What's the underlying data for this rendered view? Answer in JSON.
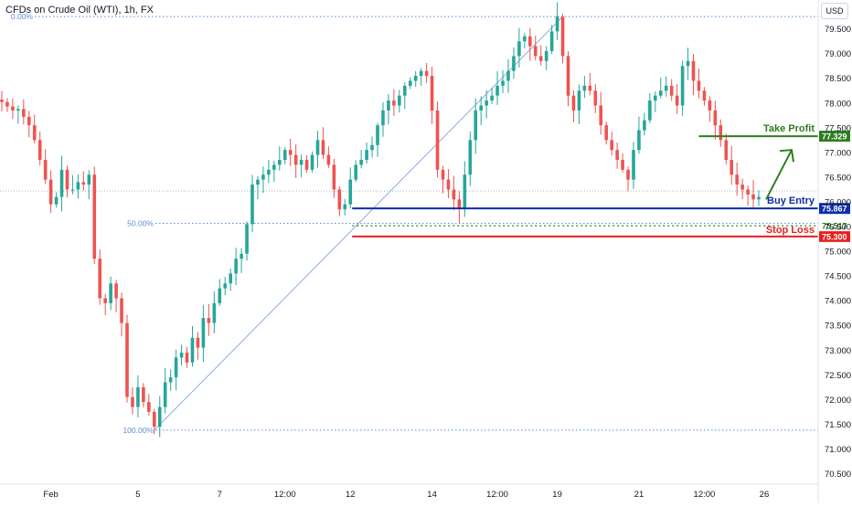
{
  "header": {
    "title": "CFDs on Crude Oil (WTI), 1h, FX",
    "currency_button": "USD"
  },
  "colors": {
    "up": "#26a69a",
    "down": "#ef5350",
    "entry": "#0d2fa8",
    "stop": "#e91e1e",
    "target": "#2e7d1f",
    "fib": "#5b8fd6"
  },
  "chart_data": {
    "type": "candlestick",
    "title": "CFDs on Crude Oil (WTI), 1h, FX",
    "ylim": [
      70.5,
      79.9
    ],
    "y_ticks": [
      "79.500",
      "79.000",
      "78.500",
      "78.000",
      "77.500",
      "77.000",
      "76.500",
      "76.000",
      "75.500",
      "75.000",
      "74.500",
      "74.000",
      "73.500",
      "73.000",
      "72.500",
      "72.000",
      "71.500",
      "71.000",
      "70.500"
    ],
    "x_ticks": [
      {
        "label": "Feb",
        "i": 9
      },
      {
        "label": "5",
        "i": 25
      },
      {
        "label": "7",
        "i": 40
      },
      {
        "label": "12:00",
        "i": 52
      },
      {
        "label": "12",
        "i": 64
      },
      {
        "label": "14",
        "i": 79
      },
      {
        "label": "12:00",
        "i": 91
      },
      {
        "label": "19",
        "i": 102
      },
      {
        "label": "21",
        "i": 117
      },
      {
        "label": "12:00",
        "i": 129
      },
      {
        "label": "26",
        "i": 140
      }
    ],
    "close": [
      78.02,
      77.93,
      77.85,
      77.88,
      77.72,
      77.55,
      77.25,
      76.85,
      76.45,
      75.95,
      76.1,
      76.65,
      76.25,
      76.25,
      76.4,
      76.35,
      76.55,
      74.85,
      74.05,
      73.95,
      74.35,
      74.05,
      73.55,
      72.05,
      71.85,
      72.25,
      71.95,
      71.75,
      71.45,
      71.85,
      72.35,
      72.45,
      72.85,
      72.95,
      72.75,
      73.25,
      73.05,
      73.65,
      73.55,
      73.95,
      74.25,
      74.35,
      74.55,
      74.85,
      74.95,
      75.55,
      76.35,
      76.45,
      76.55,
      76.65,
      76.75,
      76.85,
      77.05,
      76.95,
      76.75,
      76.85,
      76.65,
      76.95,
      77.25,
      76.95,
      76.75,
      76.25,
      75.85,
      75.95,
      76.45,
      76.75,
      76.85,
      77.05,
      77.15,
      77.55,
      77.85,
      78.05,
      77.95,
      78.15,
      78.35,
      78.45,
      78.55,
      78.65,
      78.55,
      77.85,
      76.65,
      76.45,
      76.25,
      76.05,
      75.85,
      76.55,
      77.25,
      77.85,
      77.95,
      78.05,
      78.15,
      78.35,
      78.45,
      78.65,
      78.95,
      79.25,
      79.35,
      79.15,
      78.95,
      78.85,
      79.05,
      79.45,
      79.75,
      78.95,
      78.15,
      77.85,
      78.25,
      78.35,
      78.25,
      77.95,
      77.55,
      77.25,
      77.05,
      76.85,
      76.65,
      76.45,
      77.05,
      77.45,
      77.65,
      78.05,
      78.15,
      78.25,
      78.35,
      78.15,
      77.95,
      78.75,
      78.85,
      78.45,
      78.25,
      78.05,
      77.85,
      77.55,
      77.25,
      76.85,
      76.55,
      76.35,
      76.25,
      76.15,
      76.05,
      76.1
    ],
    "annotations": {
      "fib_top": {
        "label": "0.00%",
        "value": 79.75
      },
      "fib_mid": {
        "label": "50.00%",
        "value": 75.565
      },
      "fib_bottom": {
        "label": "100.00%",
        "value": 71.38
      },
      "current_level": 76.22,
      "take_profit": {
        "label": "Take Profit",
        "value": 77.329,
        "tag": "77.329"
      },
      "buy_entry": {
        "label": "Buy Entry",
        "value": 75.867,
        "tag": "75.867"
      },
      "mid_level": {
        "value": 75.517,
        "tag": "75.517"
      },
      "stop_loss": {
        "label": "Stop Loss",
        "value": 75.3,
        "tag": "75.300"
      }
    }
  }
}
